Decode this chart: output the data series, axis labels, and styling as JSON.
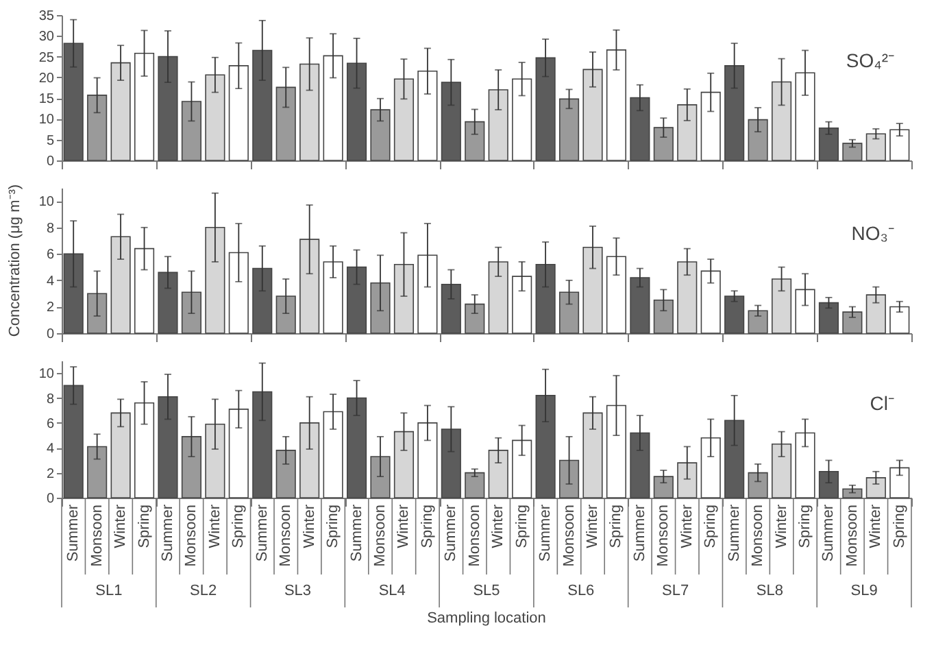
{
  "chart_data": [
    {
      "type": "bar",
      "ylim": [
        0,
        35
      ],
      "yticks": [
        0,
        5,
        10,
        15,
        20,
        25,
        30,
        35
      ],
      "grid": false,
      "tick_labels": "y",
      "annotations": [
        "SO₄²⁻"
      ],
      "series": [
        {
          "color": "#5c5c5c",
          "values": [
            28.2,
            25.0,
            26.5,
            23.4,
            18.8,
            24.7,
            15.1,
            22.8,
            7.8
          ],
          "errors": [
            5.7,
            6.2,
            7.2,
            6.0,
            5.5,
            4.5,
            3.1,
            5.4,
            1.5
          ]
        },
        {
          "color": "#9a9a9a",
          "values": [
            15.7,
            14.2,
            17.6,
            12.2,
            9.3,
            14.8,
            7.9,
            9.8,
            4.1
          ],
          "errors": [
            4.2,
            4.7,
            4.8,
            2.7,
            3.0,
            2.3,
            2.3,
            2.9,
            0.9
          ]
        },
        {
          "color": "#d6d6d6",
          "values": [
            23.5,
            20.6,
            23.2,
            19.6,
            17.0,
            21.9,
            13.4,
            18.9,
            6.4
          ],
          "errors": [
            4.2,
            4.2,
            6.3,
            4.8,
            4.8,
            4.2,
            3.8,
            5.6,
            1.2
          ]
        },
        {
          "color": "#ffffff",
          "values": [
            25.8,
            22.8,
            25.2,
            21.5,
            19.6,
            26.6,
            16.4,
            21.1,
            7.4
          ],
          "errors": [
            5.5,
            5.5,
            5.3,
            5.5,
            4.0,
            4.8,
            4.6,
            5.4,
            1.5
          ]
        }
      ]
    },
    {
      "type": "bar",
      "ylim": [
        0,
        11
      ],
      "yticks": [
        0,
        2,
        4,
        6,
        8,
        10
      ],
      "grid": false,
      "tick_labels": "y",
      "ylabel": "Concentration (μg m⁻³)",
      "annotations": [
        "NO₃⁻"
      ],
      "series": [
        {
          "color": "#5c5c5c",
          "values": [
            6.0,
            4.6,
            4.9,
            5.0,
            3.7,
            5.2,
            4.2,
            2.8,
            2.3
          ],
          "errors": [
            2.5,
            1.2,
            1.7,
            1.3,
            1.1,
            1.7,
            0.7,
            0.4,
            0.4
          ]
        },
        {
          "color": "#9a9a9a",
          "values": [
            3.0,
            3.1,
            2.8,
            3.8,
            2.2,
            3.1,
            2.5,
            1.7,
            1.6
          ],
          "errors": [
            1.7,
            1.6,
            1.3,
            2.1,
            0.7,
            0.9,
            0.8,
            0.4,
            0.4
          ]
        },
        {
          "color": "#d6d6d6",
          "values": [
            7.3,
            8.0,
            7.1,
            5.2,
            5.4,
            6.5,
            5.4,
            4.1,
            2.9
          ],
          "errors": [
            1.7,
            2.6,
            2.6,
            2.4,
            1.1,
            1.6,
            1.0,
            0.9,
            0.6
          ]
        },
        {
          "color": "#ffffff",
          "values": [
            6.4,
            6.1,
            5.4,
            5.9,
            4.3,
            5.8,
            4.7,
            3.3,
            2.0
          ],
          "errors": [
            1.6,
            2.2,
            1.2,
            2.4,
            1.1,
            1.4,
            0.9,
            1.2,
            0.4
          ]
        }
      ]
    },
    {
      "type": "bar",
      "categories": [
        "SL1",
        "SL2",
        "SL3",
        "SL4",
        "SL5",
        "SL6",
        "SL7",
        "SL8",
        "SL9"
      ],
      "ylim": [
        0,
        11
      ],
      "yticks": [
        0,
        2,
        4,
        6,
        8,
        10
      ],
      "grid": false,
      "xlabel": "Sampling location",
      "annotations": [
        "Cl⁻"
      ],
      "series": [
        {
          "name": "Summer",
          "color": "#5c5c5c",
          "values": [
            9.0,
            8.1,
            8.5,
            8.0,
            5.5,
            8.2,
            5.2,
            6.2,
            2.1
          ],
          "errors": [
            1.5,
            1.8,
            2.3,
            1.4,
            1.8,
            2.1,
            1.4,
            2.0,
            0.9
          ]
        },
        {
          "name": "Monsoon",
          "color": "#9a9a9a",
          "values": [
            4.1,
            4.9,
            3.8,
            3.3,
            2.0,
            3.0,
            1.7,
            2.0,
            0.7
          ],
          "errors": [
            1.0,
            1.6,
            1.1,
            1.6,
            0.3,
            1.9,
            0.5,
            0.7,
            0.3
          ]
        },
        {
          "name": "Winter",
          "color": "#d6d6d6",
          "values": [
            6.8,
            5.9,
            6.0,
            5.3,
            3.8,
            6.8,
            2.8,
            4.3,
            1.6
          ],
          "errors": [
            1.1,
            2.0,
            2.1,
            1.5,
            1.0,
            1.3,
            1.3,
            1.0,
            0.5
          ]
        },
        {
          "name": "Spring",
          "color": "#ffffff",
          "values": [
            7.6,
            7.1,
            6.9,
            6.0,
            4.6,
            7.4,
            4.8,
            5.2,
            2.4
          ],
          "errors": [
            1.7,
            1.5,
            1.4,
            1.4,
            1.2,
            2.4,
            1.5,
            1.1,
            0.6
          ]
        }
      ]
    }
  ]
}
